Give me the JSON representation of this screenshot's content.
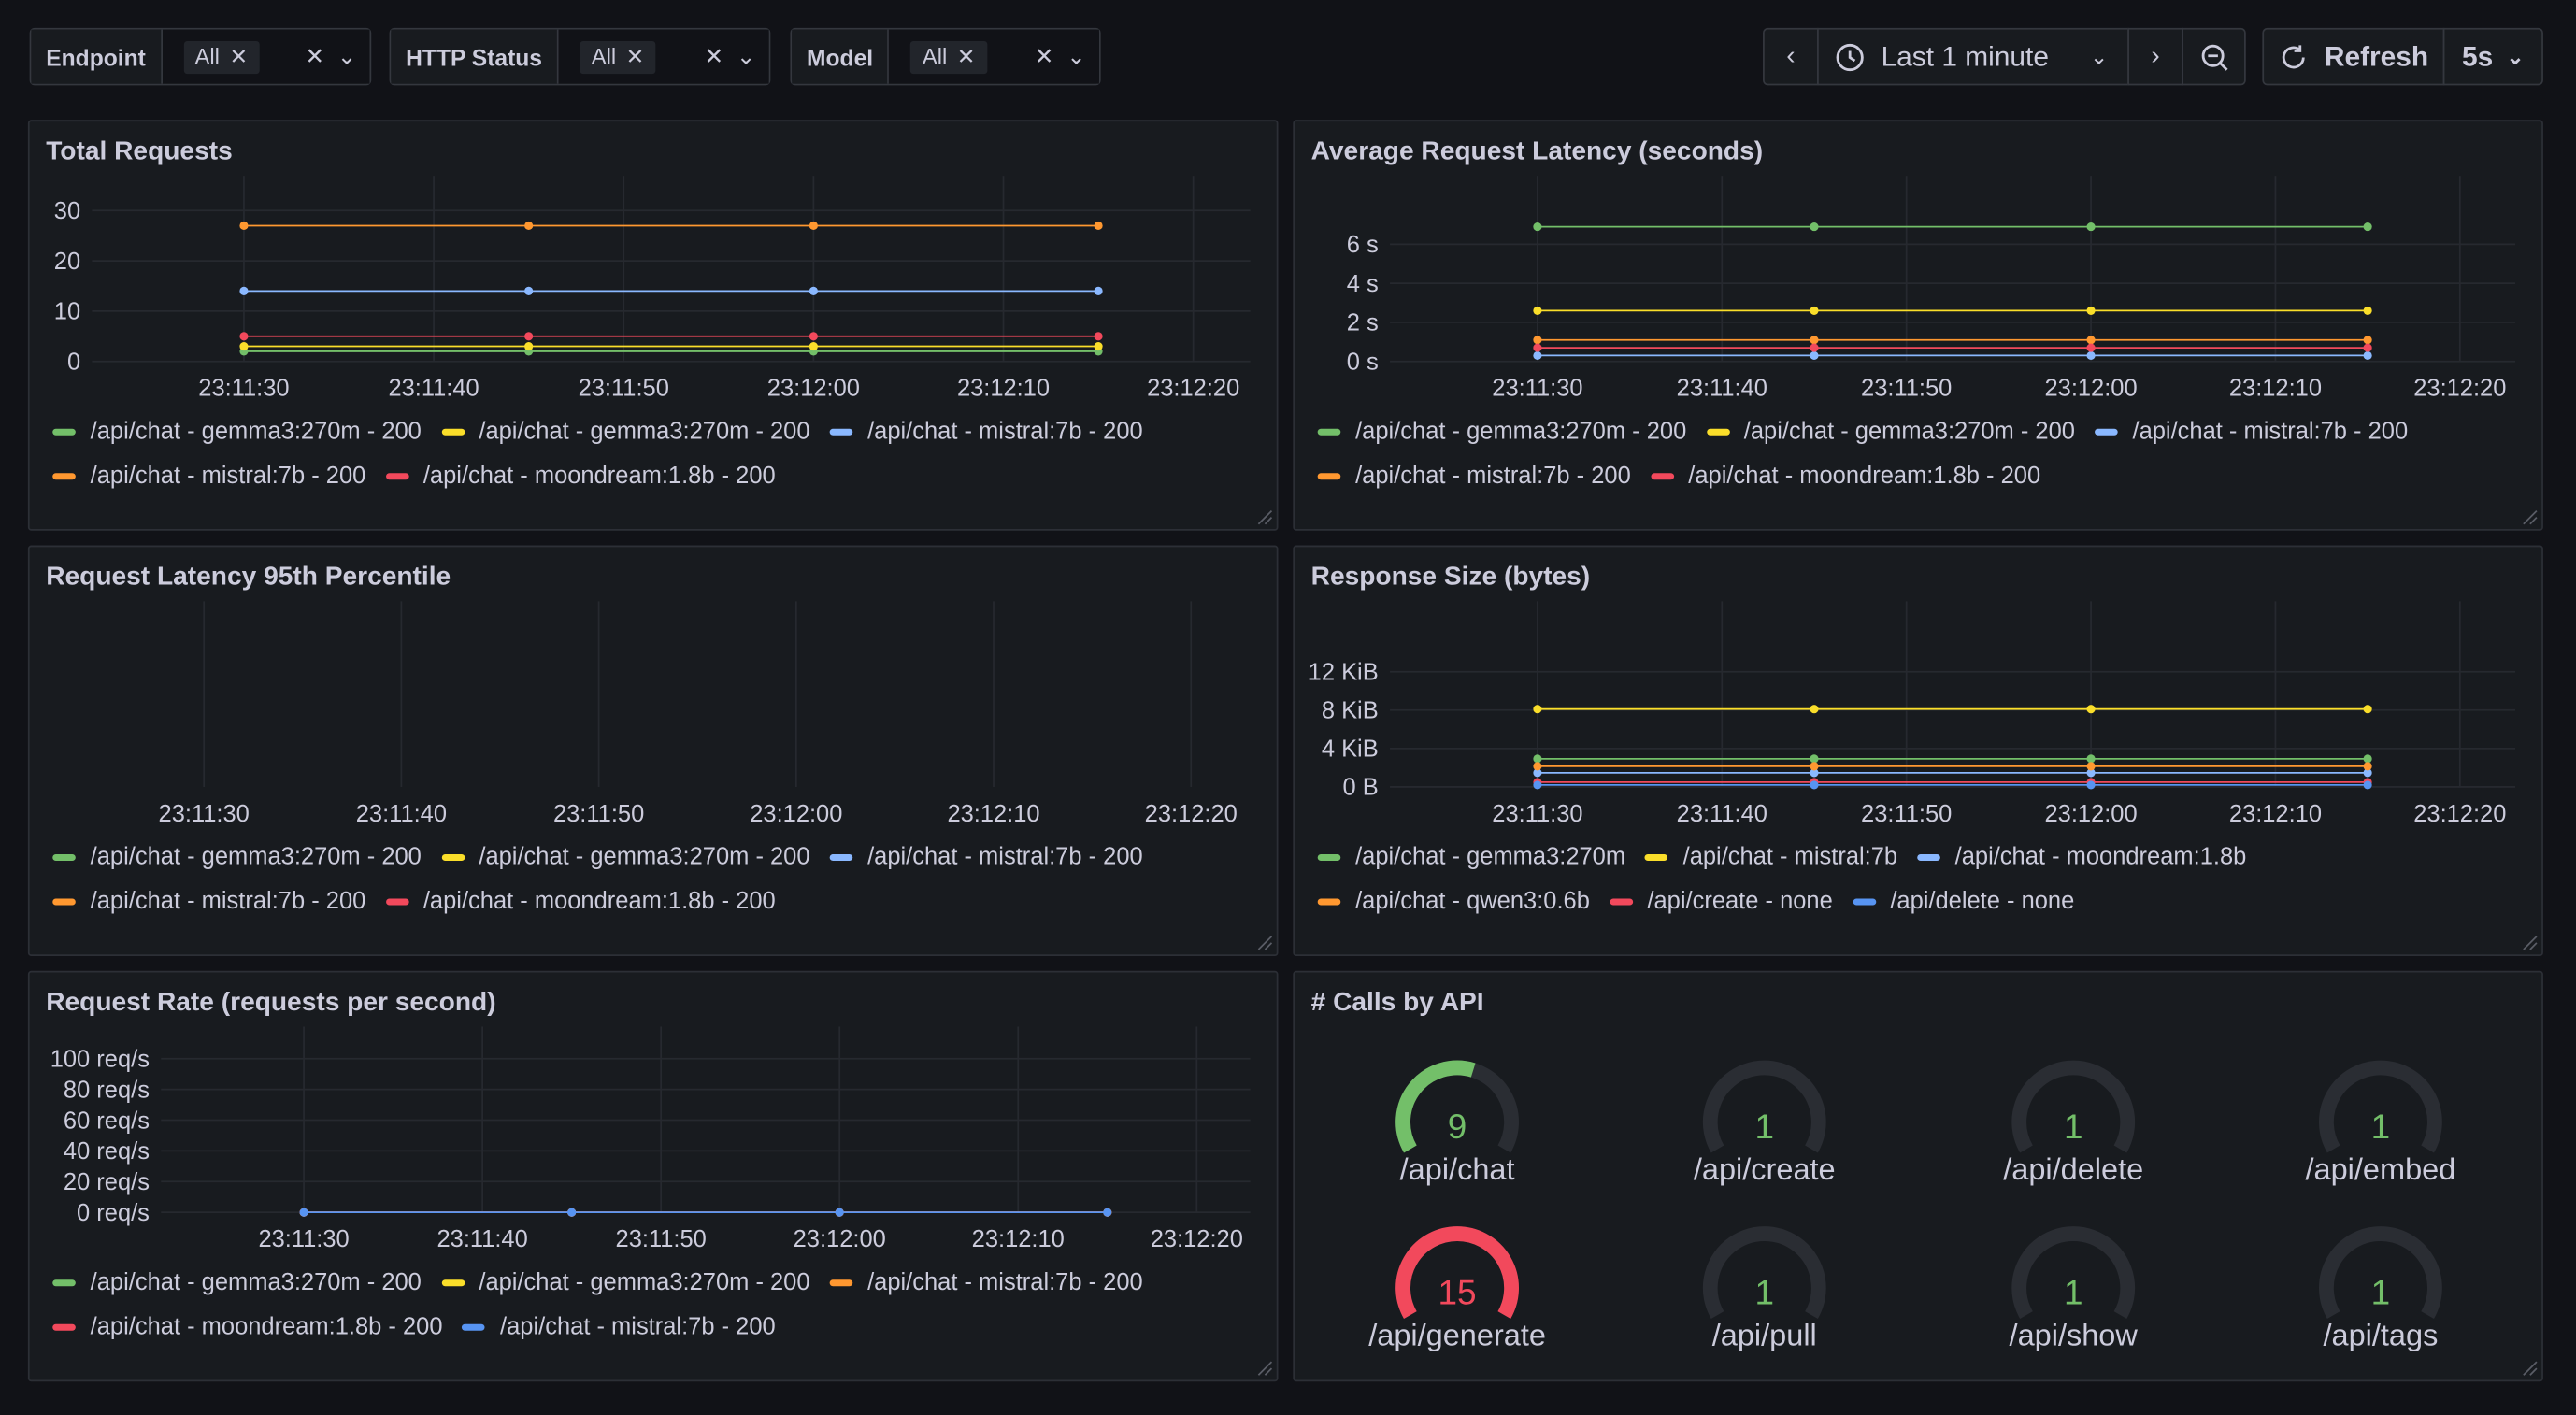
{
  "toolbar": {
    "filters": [
      {
        "label": "Endpoint",
        "value": "All"
      },
      {
        "label": "HTTP Status",
        "value": "All"
      },
      {
        "label": "Model",
        "value": "All"
      }
    ],
    "time_range": "Last 1 minute",
    "refresh": "Refresh",
    "interval": "5s"
  },
  "chart_data": [
    {
      "type": "line",
      "title": "Total Requests",
      "x": [
        83490,
        83505,
        83520,
        83535
      ],
      "xlim": [
        83482,
        83543
      ],
      "xticks": [
        {
          "value": 83490,
          "label": "23:11:30"
        },
        {
          "value": 83500,
          "label": "23:11:40"
        },
        {
          "value": 83510,
          "label": "23:11:50"
        },
        {
          "value": 83520,
          "label": "23:12:00"
        },
        {
          "value": 83530,
          "label": "23:12:10"
        },
        {
          "value": 83540,
          "label": "23:12:20"
        }
      ],
      "ylim": [
        0,
        33
      ],
      "yticks": [
        0,
        10,
        20,
        30
      ],
      "grid": true,
      "series": [
        {
          "name": "/api/chat - gemma3:270m - 200",
          "color": "#73bf69",
          "values": [
            2,
            2,
            2,
            2
          ]
        },
        {
          "name": "/api/chat - gemma3:270m - 200",
          "color": "#fade2a",
          "values": [
            3,
            3,
            3,
            3
          ]
        },
        {
          "name": "/api/chat - mistral:7b - 200",
          "color": "#8ab8ff",
          "values": [
            14,
            14,
            14,
            14
          ]
        },
        {
          "name": "/api/chat - mistral:7b - 200",
          "color": "#ff9830",
          "values": [
            27,
            27,
            27,
            27
          ]
        },
        {
          "name": "/api/chat - moondream:1.8b - 200",
          "color": "#f2495c",
          "values": [
            5,
            5,
            5,
            5
          ]
        }
      ]
    },
    {
      "type": "line",
      "title": "Average Request Latency (seconds)",
      "x": [
        83490,
        83505,
        83520,
        83535
      ],
      "xlim": [
        83482,
        83543
      ],
      "xticks": [
        {
          "value": 83490,
          "label": "23:11:30"
        },
        {
          "value": 83500,
          "label": "23:11:40"
        },
        {
          "value": 83510,
          "label": "23:11:50"
        },
        {
          "value": 83520,
          "label": "23:12:00"
        },
        {
          "value": 83530,
          "label": "23:12:10"
        },
        {
          "value": 83540,
          "label": "23:12:20"
        }
      ],
      "ylim": [
        0,
        8.5
      ],
      "yticks": [
        {
          "value": 0,
          "label": "0 s"
        },
        {
          "value": 2,
          "label": "2 s"
        },
        {
          "value": 4,
          "label": "4 s"
        },
        {
          "value": 6,
          "label": "6 s"
        }
      ],
      "grid": true,
      "series": [
        {
          "name": "/api/chat - gemma3:270m - 200",
          "color": "#73bf69",
          "values": [
            6.9,
            6.9,
            6.9,
            6.9
          ]
        },
        {
          "name": "/api/chat - gemma3:270m - 200",
          "color": "#fade2a",
          "values": [
            2.6,
            2.6,
            2.6,
            2.6
          ]
        },
        {
          "name": "/api/chat - mistral:7b - 200",
          "color": "#8ab8ff",
          "values": [
            0.3,
            0.3,
            0.3,
            0.3
          ]
        },
        {
          "name": "/api/chat - mistral:7b - 200",
          "color": "#ff9830",
          "values": [
            1.1,
            1.1,
            1.1,
            1.1
          ]
        },
        {
          "name": "/api/chat - moondream:1.8b - 200",
          "color": "#f2495c",
          "values": [
            0.7,
            0.7,
            0.7,
            0.7
          ]
        }
      ]
    },
    {
      "type": "line",
      "title": "Request Latency 95th Percentile",
      "x": [
        83490,
        83505,
        83520,
        83535
      ],
      "xlim": [
        83482,
        83543
      ],
      "xticks": [
        {
          "value": 83490,
          "label": "23:11:30"
        },
        {
          "value": 83500,
          "label": "23:11:40"
        },
        {
          "value": 83510,
          "label": "23:11:50"
        },
        {
          "value": 83520,
          "label": "23:12:00"
        },
        {
          "value": 83530,
          "label": "23:12:10"
        },
        {
          "value": 83540,
          "label": "23:12:20"
        }
      ],
      "grid": true,
      "series": [
        {
          "name": "/api/chat - gemma3:270m - 200",
          "color": "#73bf69",
          "values": [
            null,
            null,
            null,
            null
          ]
        },
        {
          "name": "/api/chat - gemma3:270m - 200",
          "color": "#fade2a",
          "values": [
            null,
            null,
            null,
            null
          ]
        },
        {
          "name": "/api/chat - mistral:7b - 200",
          "color": "#8ab8ff",
          "values": [
            null,
            null,
            null,
            null
          ]
        },
        {
          "name": "/api/chat - mistral:7b - 200",
          "color": "#ff9830",
          "values": [
            null,
            null,
            null,
            null
          ]
        },
        {
          "name": "/api/chat - moondream:1.8b - 200",
          "color": "#f2495c",
          "values": [
            null,
            null,
            null,
            null
          ]
        }
      ]
    },
    {
      "type": "line",
      "title": "Response Size (bytes)",
      "x": [
        83490,
        83505,
        83520,
        83535
      ],
      "xlim": [
        83482,
        83543
      ],
      "xticks": [
        {
          "value": 83490,
          "label": "23:11:30"
        },
        {
          "value": 83500,
          "label": "23:11:40"
        },
        {
          "value": 83510,
          "label": "23:11:50"
        },
        {
          "value": 83520,
          "label": "23:12:00"
        },
        {
          "value": 83530,
          "label": "23:12:10"
        },
        {
          "value": 83540,
          "label": "23:12:20"
        }
      ],
      "ylim": [
        0,
        17700
      ],
      "yticks": [
        {
          "value": 0,
          "label": "0 B"
        },
        {
          "value": 4096,
          "label": "4 KiB"
        },
        {
          "value": 8192,
          "label": "8 KiB"
        },
        {
          "value": 12288,
          "label": "12 KiB"
        }
      ],
      "grid": true,
      "series": [
        {
          "name": "/api/chat - gemma3:270m",
          "color": "#73bf69",
          "values": [
            3000,
            3000,
            3000,
            3000
          ]
        },
        {
          "name": "/api/chat - mistral:7b",
          "color": "#fade2a",
          "values": [
            8300,
            8300,
            8300,
            8300
          ]
        },
        {
          "name": "/api/chat - moondream:1.8b",
          "color": "#8ab8ff",
          "values": [
            1500,
            1500,
            1500,
            1500
          ]
        },
        {
          "name": "/api/chat - qwen3:0.6b",
          "color": "#ff9830",
          "values": [
            2200,
            2200,
            2200,
            2200
          ]
        },
        {
          "name": "/api/create - none",
          "color": "#f2495c",
          "values": [
            500,
            500,
            500,
            500
          ]
        },
        {
          "name": "/api/delete - none",
          "color": "#5794f2",
          "values": [
            200,
            200,
            200,
            200
          ]
        }
      ]
    },
    {
      "type": "line",
      "title": "Request Rate (requests per second)",
      "x": [
        83490,
        83505,
        83520,
        83535
      ],
      "xlim": [
        83482,
        83543
      ],
      "xticks": [
        {
          "value": 83490,
          "label": "23:11:30"
        },
        {
          "value": 83500,
          "label": "23:11:40"
        },
        {
          "value": 83510,
          "label": "23:11:50"
        },
        {
          "value": 83520,
          "label": "23:12:00"
        },
        {
          "value": 83530,
          "label": "23:12:10"
        },
        {
          "value": 83540,
          "label": "23:12:20"
        }
      ],
      "ylim": [
        0,
        108
      ],
      "yticks": [
        {
          "value": 0,
          "label": "0 req/s"
        },
        {
          "value": 20,
          "label": "20 req/s"
        },
        {
          "value": 40,
          "label": "40 req/s"
        },
        {
          "value": 60,
          "label": "60 req/s"
        },
        {
          "value": 80,
          "label": "80 req/s"
        },
        {
          "value": 100,
          "label": "100 req/s"
        }
      ],
      "grid": true,
      "series": [
        {
          "name": "/api/chat - gemma3:270m - 200",
          "color": "#73bf69",
          "values": [
            0,
            0,
            0,
            0
          ]
        },
        {
          "name": "/api/chat - gemma3:270m - 200",
          "color": "#fade2a",
          "values": [
            0,
            0,
            0,
            0
          ]
        },
        {
          "name": "/api/chat - mistral:7b - 200",
          "color": "#ff9830",
          "values": [
            0,
            0,
            0,
            0
          ]
        },
        {
          "name": "/api/chat - moondream:1.8b - 200",
          "color": "#f2495c",
          "values": [
            0,
            0,
            0,
            0
          ]
        },
        {
          "name": "/api/chat - mistral:7b - 200",
          "color": "#5794f2",
          "values": [
            0,
            0,
            0,
            0
          ]
        }
      ]
    },
    {
      "type": "gauge",
      "title": "# Calls by API",
      "categories": [
        "/api/chat",
        "/api/create",
        "/api/delete",
        "/api/embed",
        "/api/generate",
        "/api/pull",
        "/api/show",
        "/api/tags"
      ],
      "values": [
        9,
        1,
        1,
        1,
        15,
        1,
        1,
        1
      ],
      "colors": [
        "#73bf69",
        "#73bf69",
        "#73bf69",
        "#73bf69",
        "#f2495c",
        "#73bf69",
        "#73bf69",
        "#73bf69"
      ]
    }
  ]
}
